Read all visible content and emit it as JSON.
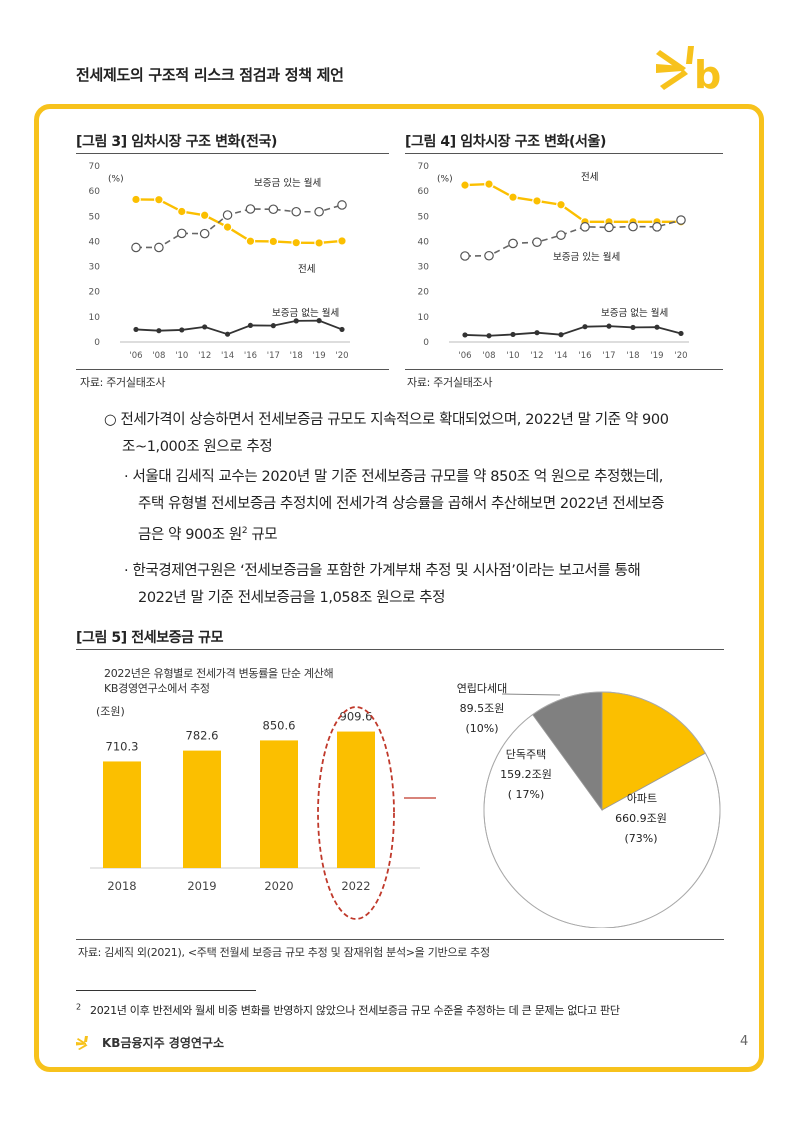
{
  "header": {
    "title": "전세제도의 구조적 리스크 점검과 정책 제언"
  },
  "figure3": {
    "title": "[그림 3] 임차시장 구조 변화(전국)",
    "source": "자료: 주거실태조사"
  },
  "figure4": {
    "title": "[그림 4] 임차시장 구조 변화(서울)",
    "source": "자료: 주거실태조사"
  },
  "body": {
    "bullet1_mark": "○",
    "bullet1_line1": "전세가격이 상승하면서 전세보증금 규모도 지속적으로 확대되었으며, 2022년 말 기준 약 900",
    "bullet1_line2": "조~1,000조 원으로 추정",
    "sub1_mark": "·",
    "sub1_line1": "서울대 김세직 교수는 2020년 말 기준 전세보증금 규모를 약 850조 억 원으로 추정했는데,",
    "sub1_line2": "주택 유형별 전세보증금 추정치에 전세가격 상승률을 곱해서 추산해보면 2022년 전세보증",
    "sub1_line3": "금은 약 900조 원",
    "sub1_sup": "2",
    "sub1_line3_tail": " 규모",
    "sub2_mark": "·",
    "sub2_line1": "한국경제연구원은 ‘전세보증금을 포함한 가계부채 추정 및 시사점’이라는 보고서를 통해",
    "sub2_line2": "2022년 말 기준 전세보증금을 1,058조 원으로 추정"
  },
  "figure5": {
    "title": "[그림 5] 전세보증금 규모",
    "note_line1": "2022년은 유형별로 전세가격 변동률을 단순 계산해",
    "note_line2": "KB경영연구소에서 추정",
    "source": "자료: 김세직 외(2021), <주택 전월세 보증금 규모 추정 및 잠재위험 분석>을 기반으로 추정"
  },
  "footnote": {
    "mark": "2",
    "text": "2021년 이후 반전세와 월세 비중 변화를 반영하지 않았으나 전세보증금 규모 수준을 추정하는 데 큰 문제는 없다고 판단"
  },
  "footer": {
    "org": "KB금융지주 경영연구소",
    "page": "4"
  },
  "colors": {
    "accent": "#f7c21c",
    "bar": "#fbbf00",
    "dark": "#333333",
    "gray": "#808080",
    "dashed_circle": "#c0392b"
  },
  "chart_data": [
    {
      "type": "line",
      "x": [
        "'06",
        "'08",
        "'10",
        "'12",
        "'14",
        "'16",
        "'17",
        "'18",
        "'19",
        "'20"
      ],
      "ylim": [
        0,
        70
      ],
      "yticks": [
        0,
        10,
        20,
        30,
        40,
        50,
        60,
        70
      ],
      "ylabel": "(%)",
      "series": [
        {
          "name": "전세",
          "values": [
            56.7,
            56.6,
            51.9,
            50.4,
            45.7,
            40.1,
            40.0,
            39.5,
            39.4,
            40.2
          ]
        },
        {
          "name": "보증금 있는 월세",
          "values": [
            37.6,
            37.6,
            43.2,
            43.1,
            50.5,
            52.9,
            52.8,
            51.8,
            51.8,
            54.5
          ]
        },
        {
          "name": "보증금 없는 월세",
          "values": [
            5.0,
            4.5,
            4.8,
            6.0,
            3.1,
            6.6,
            6.5,
            8.4,
            8.5,
            5.0
          ]
        }
      ]
    },
    {
      "type": "line",
      "x": [
        "'06",
        "'08",
        "'10",
        "'12",
        "'14",
        "'16",
        "'17",
        "'18",
        "'19",
        "'20"
      ],
      "ylim": [
        0,
        70
      ],
      "yticks": [
        0,
        10,
        20,
        30,
        40,
        50,
        60,
        70
      ],
      "ylabel": "(%)",
      "series": [
        {
          "name": "전세",
          "values": [
            62.4,
            62.8,
            57.6,
            56.1,
            54.6,
            47.8,
            47.8,
            47.8,
            47.8,
            47.8
          ]
        },
        {
          "name": "보증금 있는 월세",
          "values": [
            34.2,
            34.3,
            39.2,
            39.7,
            42.5,
            45.8,
            45.6,
            45.9,
            45.8,
            48.5
          ]
        },
        {
          "name": "보증금 없는 월세",
          "values": [
            2.8,
            2.5,
            3.0,
            3.7,
            2.9,
            6.1,
            6.3,
            5.8,
            5.9,
            3.4
          ]
        }
      ]
    },
    {
      "type": "bar",
      "unit": "(조원)",
      "categories": [
        "2018",
        "2019",
        "2020",
        "2022"
      ],
      "values": [
        710.3,
        782.6,
        850.6,
        909.6
      ],
      "labels": [
        "710.3",
        "782.6",
        "850.6",
        "909.6"
      ],
      "highlight": "2022"
    },
    {
      "type": "pie",
      "slices": [
        {
          "name": "아파트",
          "amount": "660.9조원",
          "share": "(73%)",
          "value": 73
        },
        {
          "name": "단독주택",
          "amount": "159.2조원",
          "share": "( 17%)",
          "value": 17
        },
        {
          "name": "연립다세대",
          "amount": "89.5조원",
          "share": "(10%)",
          "value": 10
        }
      ]
    }
  ]
}
